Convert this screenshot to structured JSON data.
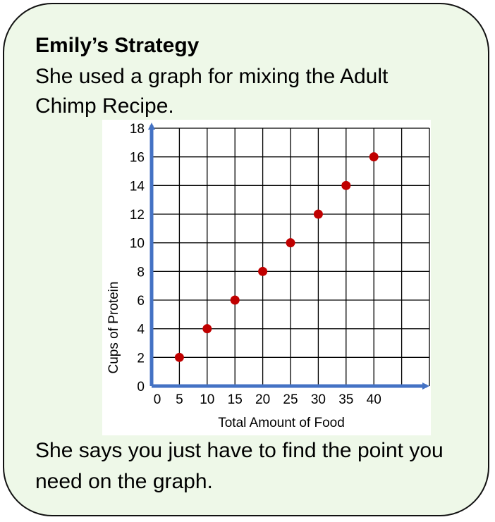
{
  "card": {
    "title": "Emily’s Strategy",
    "intro": "She used a graph for mixing the Adult Chimp Recipe.",
    "outro": "She says you just have to find the point you need on the graph."
  },
  "colors": {
    "background": "#eef8e8",
    "border": "#111111",
    "axis": "#4472c4",
    "grid": "#000000",
    "point": "#c00000"
  },
  "chart_data": {
    "type": "scatter",
    "title": "",
    "xlabel": "Total Amount of Food",
    "ylabel": "Cups of Protein",
    "x": [
      5,
      10,
      15,
      20,
      25,
      30,
      35,
      40
    ],
    "y": [
      2,
      4,
      6,
      8,
      10,
      12,
      14,
      16
    ],
    "x_ticks": [
      0,
      5,
      10,
      15,
      20,
      25,
      30,
      35,
      40
    ],
    "y_ticks": [
      0,
      2,
      4,
      6,
      8,
      10,
      12,
      14,
      16,
      18
    ],
    "xlim": [
      0,
      50
    ],
    "ylim": [
      0,
      18
    ],
    "grid": true,
    "legend": "none"
  }
}
